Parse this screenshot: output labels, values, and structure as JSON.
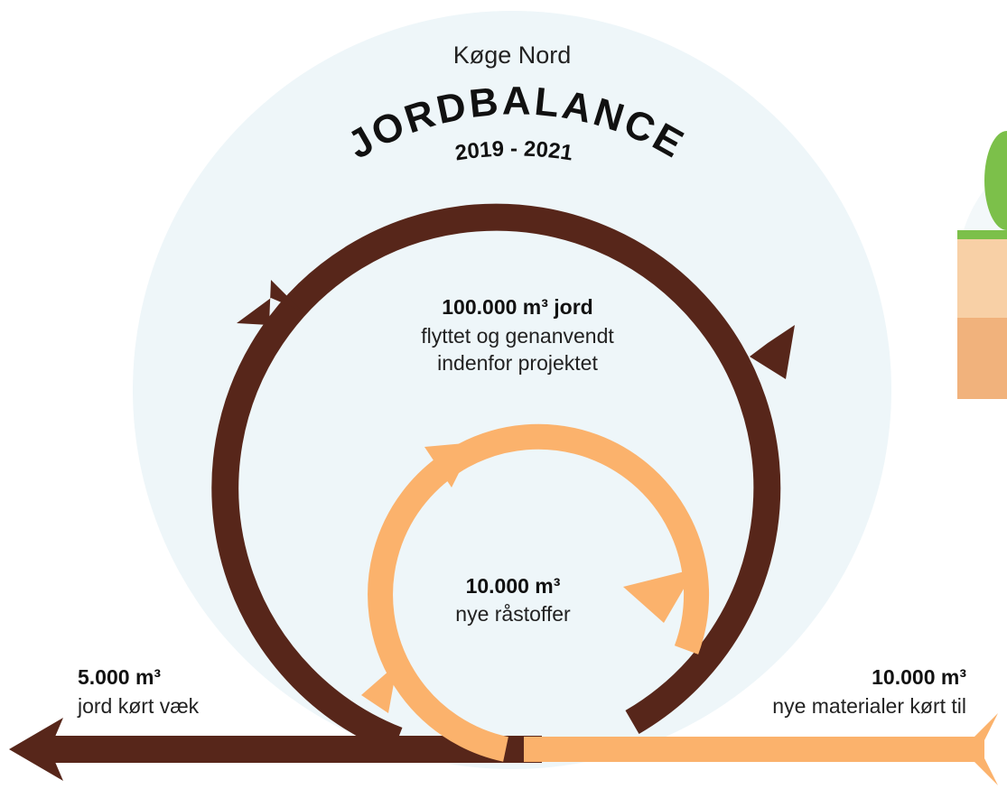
{
  "header": {
    "subtitle": "Køge Nord",
    "title": "JORDBALANCE",
    "period": "2019 - 2021"
  },
  "outer_loop": {
    "amount": "100.000 m³ jord",
    "lines": [
      "flyttet og genanvendt",
      "indenfor projektet"
    ]
  },
  "inner_loop": {
    "amount": "10.000 m³",
    "lines": [
      "nye råstoffer"
    ]
  },
  "outflow": {
    "amount": "5.000 m³",
    "lines": [
      "jord kørt væk"
    ]
  },
  "inflow": {
    "amount": "10.000 m³",
    "lines": [
      "nye materialer kørt til"
    ]
  }
}
